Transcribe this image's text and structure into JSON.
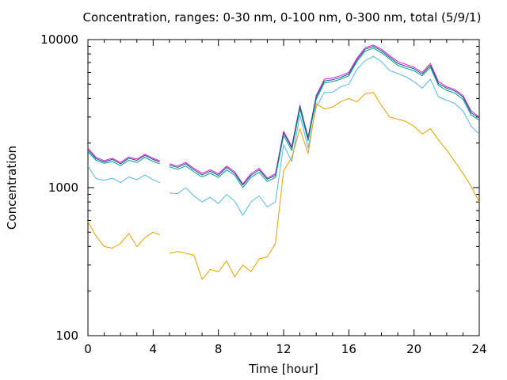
{
  "chart_data": {
    "type": "line",
    "title": "Concentration, ranges: 0-30 nm, 0-100 nm, 0-300 nm, total (5/9/1)",
    "xlabel": "Time [hour]",
    "ylabel": "Concentration",
    "xlim": [
      0,
      24
    ],
    "ylim": [
      100,
      10000
    ],
    "yscale": "log",
    "grid": false,
    "legend": "none",
    "x_ticks": [
      "0",
      "4",
      "8",
      "12",
      "16",
      "20",
      "24"
    ],
    "y_ticks": [
      "100",
      "1000",
      "10000"
    ],
    "x": [
      0,
      0.5,
      1,
      1.5,
      2,
      2.5,
      3,
      3.5,
      4,
      4.4,
      4.6,
      5,
      5.5,
      6,
      6.5,
      7,
      7.5,
      8,
      8.5,
      9,
      9.5,
      10,
      10.5,
      11,
      11.5,
      12,
      12.5,
      13,
      13.5,
      14,
      14.5,
      15,
      15.5,
      16,
      16.5,
      17,
      17.5,
      18,
      18.5,
      19,
      19.5,
      20,
      20.5,
      21,
      21.5,
      22,
      22.5,
      23,
      23.5,
      24
    ],
    "series": [
      {
        "color": "#e01fc0",
        "values": [
          1850,
          1600,
          1520,
          1580,
          1480,
          1610,
          1560,
          1680,
          1580,
          1520,
          null,
          1450,
          1400,
          1480,
          1350,
          1250,
          1320,
          1240,
          1400,
          1280,
          1060,
          1240,
          1350,
          1160,
          1240,
          2400,
          1900,
          3600,
          2200,
          4200,
          5400,
          5500,
          5700,
          6000,
          7500,
          8800,
          9200,
          8600,
          7800,
          7100,
          6800,
          6500,
          6000,
          6900,
          5200,
          4800,
          4600,
          4200,
          3300,
          3000
        ]
      },
      {
        "color": "#0b4fa8",
        "values": [
          1800,
          1570,
          1490,
          1550,
          1450,
          1580,
          1530,
          1650,
          1550,
          1490,
          null,
          1420,
          1370,
          1450,
          1320,
          1220,
          1290,
          1210,
          1370,
          1250,
          1040,
          1210,
          1320,
          1140,
          1210,
          2350,
          1850,
          3520,
          2150,
          4100,
          5250,
          5350,
          5550,
          5850,
          7300,
          8600,
          9000,
          8400,
          7600,
          6900,
          6600,
          6350,
          5850,
          6700,
          5050,
          4700,
          4500,
          4100,
          3200,
          2950
        ]
      },
      {
        "color": "#009e73",
        "values": [
          1750,
          1530,
          1460,
          1500,
          1410,
          1530,
          1480,
          1600,
          1500,
          1450,
          null,
          1380,
          1330,
          1400,
          1280,
          1180,
          1250,
          1170,
          1320,
          1210,
          1000,
          1170,
          1270,
          1100,
          1170,
          2250,
          1780,
          3400,
          2070,
          3950,
          5100,
          5200,
          5400,
          5700,
          7100,
          8350,
          8750,
          8150,
          7400,
          6700,
          6400,
          6150,
          5700,
          6500,
          4900,
          4550,
          4350,
          3950,
          3100,
          2850
        ]
      },
      {
        "color": "#56b4e9",
        "values": [
          1400,
          1150,
          1120,
          1160,
          1080,
          1180,
          1130,
          1220,
          1130,
          1080,
          null,
          920,
          910,
          1000,
          880,
          800,
          860,
          780,
          900,
          810,
          650,
          800,
          880,
          740,
          800,
          1950,
          1500,
          3100,
          1850,
          3500,
          4400,
          4400,
          4800,
          5000,
          6300,
          7200,
          7700,
          7100,
          6200,
          5900,
          5600,
          5200,
          4700,
          5400,
          4100,
          3900,
          3700,
          3300,
          2600,
          2300
        ]
      },
      {
        "color": "#e69f00",
        "values": [
          590,
          470,
          400,
          390,
          420,
          490,
          400,
          460,
          500,
          480,
          null,
          360,
          370,
          360,
          350,
          240,
          280,
          270,
          320,
          250,
          300,
          270,
          330,
          340,
          420,
          1300,
          1600,
          2500,
          1700,
          3700,
          3400,
          3500,
          3800,
          4000,
          3800,
          4300,
          4400,
          3600,
          3000,
          2900,
          2800,
          2600,
          2300,
          2500,
          2100,
          1800,
          1500,
          1250,
          1020,
          800
        ]
      }
    ]
  }
}
